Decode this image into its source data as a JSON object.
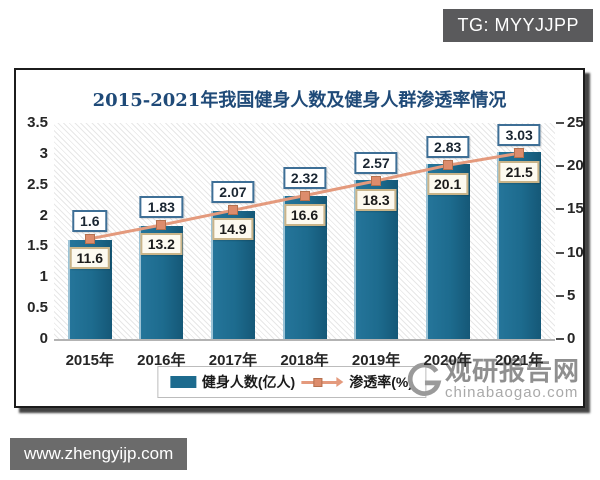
{
  "badges": {
    "telegram": "TG: MYYJJPP",
    "website": "www.zhengyijp.com"
  },
  "watermark": {
    "name": "观研报告网",
    "domain": "chinabaogao.com",
    "logo": "g-swirl-logo",
    "color": "#8f8f8f"
  },
  "chart_data": {
    "type": "bar",
    "title": "2015-2021年我国健身人数及健身人群渗透率情况",
    "categories": [
      "2015年",
      "2016年",
      "2017年",
      "2018年",
      "2019年",
      "2020年",
      "2021年"
    ],
    "series": [
      {
        "name": "健身人数(亿人)",
        "type": "bar",
        "axis": "left",
        "values": [
          1.6,
          1.83,
          2.07,
          2.32,
          2.57,
          2.83,
          3.03
        ],
        "labels": [
          "1.6",
          "1.83",
          "2.07",
          "2.32",
          "2.57",
          "2.83",
          "3.03"
        ],
        "color": "#1d6b8e"
      },
      {
        "name": "渗透率(%)",
        "type": "line",
        "axis": "right",
        "values": [
          11.6,
          13.2,
          14.9,
          16.6,
          18.3,
          20.1,
          21.5
        ],
        "labels": [
          "11.6",
          "13.2",
          "14.9",
          "16.6",
          "18.3",
          "20.1",
          "21.5"
        ],
        "color": "#e49a7d",
        "marker_color": "#dd8c6c"
      }
    ],
    "left_axis": {
      "min": 0,
      "max": 3.5,
      "step": 0.5,
      "ticks": [
        "3.5",
        "3",
        "2.5",
        "2",
        "1.5",
        "1",
        "0.5",
        "0"
      ]
    },
    "right_axis": {
      "min": 0,
      "max": 25,
      "step": 5,
      "ticks": [
        "25",
        "20",
        "15",
        "10",
        "5",
        "0"
      ]
    },
    "legend_position": "bottom",
    "grid": false,
    "plot_background": "diagonal-hatch",
    "title_color": "#1f4a78"
  }
}
